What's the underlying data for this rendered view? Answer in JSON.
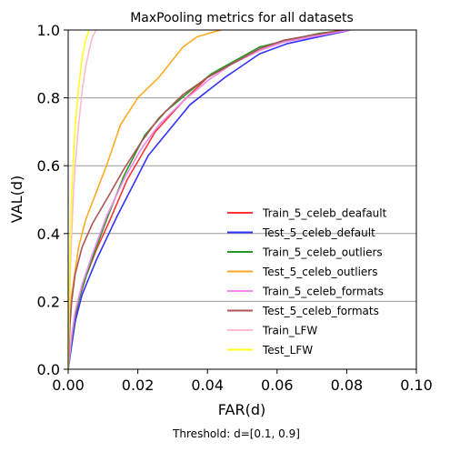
{
  "chart_data": {
    "type": "line",
    "title": "MaxPooling metrics for all datasets",
    "xlabel": "FAR(d)",
    "ylabel": "VAL(d)",
    "footnote": "Threshold: d=[0.1, 0.9]",
    "xlim": [
      0.0,
      0.1
    ],
    "ylim": [
      0.0,
      1.0
    ],
    "xticks": [
      "0.00",
      "0.02",
      "0.04",
      "0.06",
      "0.08",
      "0.10"
    ],
    "yticks": [
      "0.0",
      "0.2",
      "0.4",
      "0.6",
      "0.8",
      "1.0"
    ],
    "grid": "horizontal",
    "legend_position": "lower-right",
    "series": [
      {
        "name": "Train_5_celeb_deafault",
        "color": "#ff3333",
        "x": [
          0,
          0.001,
          0.002,
          0.003,
          0.005,
          0.008,
          0.012,
          0.017,
          0.025,
          0.033,
          0.04,
          0.047,
          0.055,
          0.062,
          0.07,
          0.077,
          0.081
        ],
        "y": [
          0,
          0.08,
          0.14,
          0.2,
          0.27,
          0.35,
          0.44,
          0.56,
          0.7,
          0.79,
          0.86,
          0.9,
          0.94,
          0.965,
          0.98,
          0.995,
          1.0
        ]
      },
      {
        "name": "Test_5_celeb_default",
        "color": "#3333ff",
        "x": [
          0,
          0.001,
          0.002,
          0.004,
          0.008,
          0.014,
          0.023,
          0.035,
          0.045,
          0.055,
          0.063,
          0.072,
          0.079,
          0.081
        ],
        "y": [
          0,
          0.07,
          0.14,
          0.22,
          0.32,
          0.45,
          0.63,
          0.78,
          0.86,
          0.93,
          0.96,
          0.98,
          0.995,
          1.0
        ]
      },
      {
        "name": "Train_5_celeb_outliers",
        "color": "#229922",
        "x": [
          0,
          0.001,
          0.002,
          0.004,
          0.007,
          0.011,
          0.016,
          0.022,
          0.028,
          0.035,
          0.041,
          0.048,
          0.055,
          0.063,
          0.072,
          0.08
        ],
        "y": [
          0,
          0.09,
          0.16,
          0.24,
          0.33,
          0.44,
          0.57,
          0.69,
          0.76,
          0.82,
          0.87,
          0.91,
          0.95,
          0.97,
          0.99,
          1.0
        ]
      },
      {
        "name": "Test_5_celeb_outliers",
        "color": "#ffaa22",
        "x": [
          0,
          0.0005,
          0.001,
          0.002,
          0.003,
          0.005,
          0.008,
          0.011,
          0.015,
          0.02,
          0.026,
          0.033,
          0.037,
          0.042,
          0.044
        ],
        "y": [
          0,
          0.17,
          0.22,
          0.29,
          0.36,
          0.44,
          0.52,
          0.6,
          0.72,
          0.8,
          0.86,
          0.95,
          0.98,
          0.995,
          1.0
        ]
      },
      {
        "name": "Train_5_celeb_formats",
        "color": "#ee88ee",
        "x": [
          0,
          0.001,
          0.002,
          0.004,
          0.007,
          0.011,
          0.016,
          0.021,
          0.026,
          0.033,
          0.04,
          0.047,
          0.055,
          0.062,
          0.07,
          0.078,
          0.081
        ],
        "y": [
          0,
          0.1,
          0.17,
          0.25,
          0.34,
          0.45,
          0.56,
          0.65,
          0.72,
          0.79,
          0.85,
          0.9,
          0.94,
          0.965,
          0.98,
          0.995,
          1.0
        ]
      },
      {
        "name": "Test_5_celeb_formats",
        "color": "#aa5555",
        "x": [
          0,
          0.0005,
          0.001,
          0.002,
          0.004,
          0.007,
          0.011,
          0.016,
          0.021,
          0.026,
          0.033,
          0.04,
          0.047,
          0.055,
          0.062,
          0.07,
          0.079
        ],
        "y": [
          0,
          0.13,
          0.2,
          0.28,
          0.36,
          0.43,
          0.5,
          0.59,
          0.67,
          0.74,
          0.81,
          0.86,
          0.9,
          0.945,
          0.97,
          0.985,
          1.0
        ]
      },
      {
        "name": "Train_LFW",
        "color": "#ffbbcc",
        "x": [
          0,
          0.0005,
          0.001,
          0.0015,
          0.002,
          0.003,
          0.004,
          0.005,
          0.006,
          0.007,
          0.008
        ],
        "y": [
          0,
          0.25,
          0.4,
          0.52,
          0.6,
          0.72,
          0.82,
          0.89,
          0.94,
          0.98,
          1.0
        ]
      },
      {
        "name": "Test_LFW",
        "color": "#ffff22",
        "x": [
          0,
          0.0003,
          0.0007,
          0.001,
          0.0015,
          0.002,
          0.003,
          0.004,
          0.005,
          0.006
        ],
        "y": [
          0,
          0.25,
          0.4,
          0.52,
          0.62,
          0.72,
          0.83,
          0.92,
          0.97,
          1.0
        ]
      }
    ]
  }
}
